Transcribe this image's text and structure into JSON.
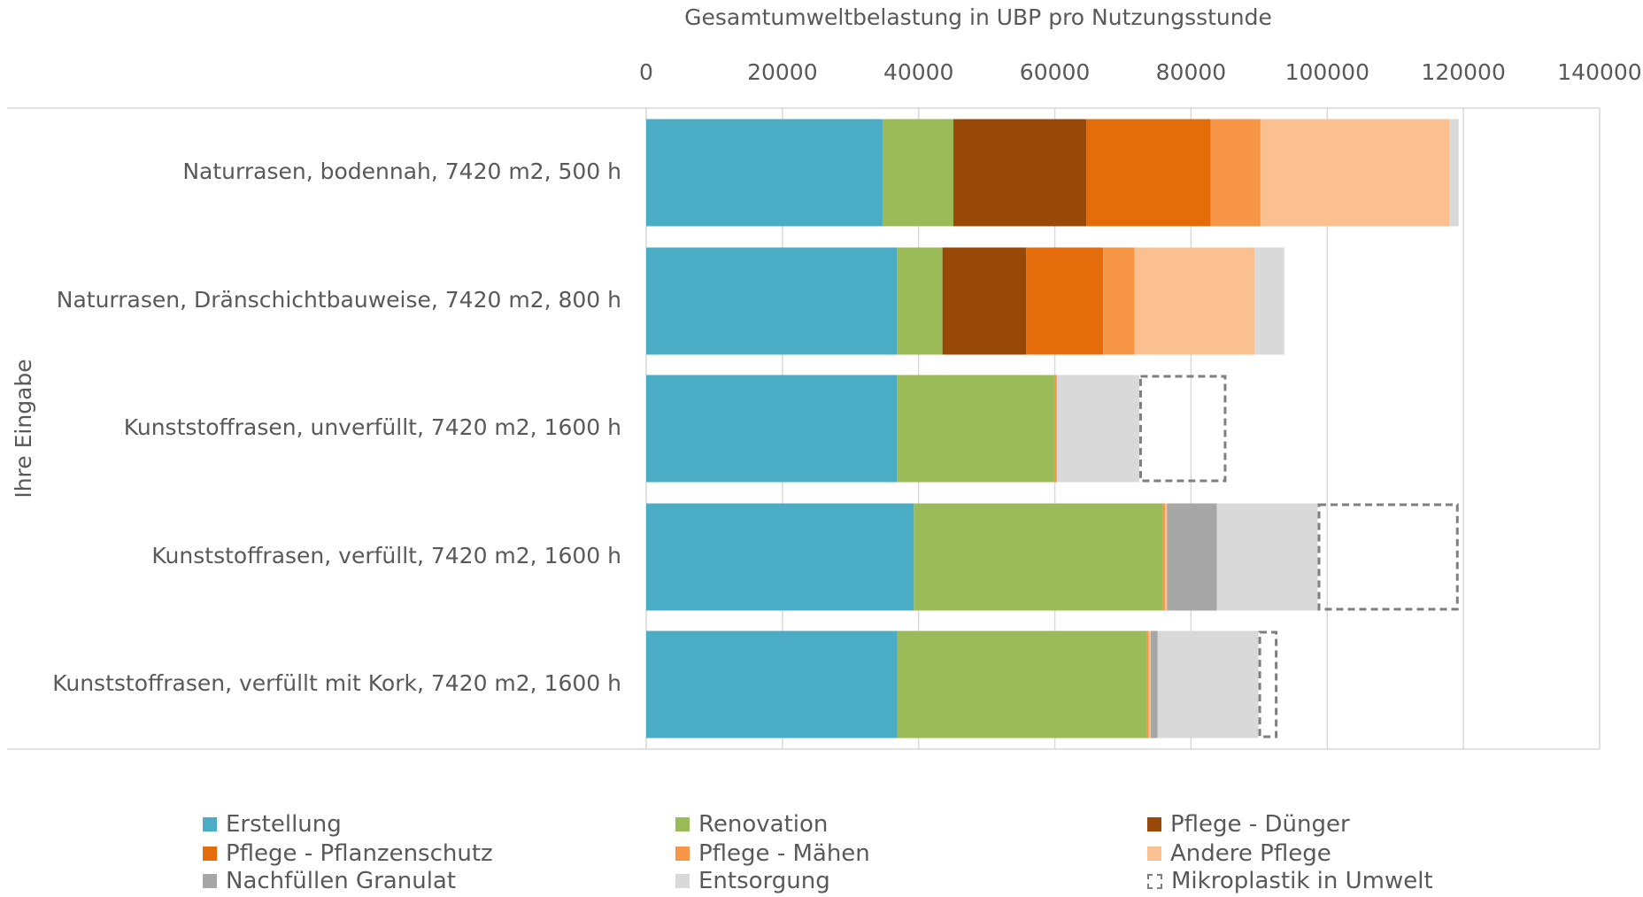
{
  "chart_data": {
    "type": "bar",
    "orientation": "horizontal",
    "stacked": true,
    "title": "Gesamtumweltbelastung in UBP pro Nutzungsstunde",
    "xlabel": "Gesamtumweltbelastung in UBP pro Nutzungsstunde",
    "ylabel": "Ihre Eingabe",
    "xlim": [
      0,
      140000
    ],
    "xticks": [
      0,
      20000,
      40000,
      60000,
      80000,
      100000,
      120000,
      140000
    ],
    "x_tick_labels": [
      "0",
      "20000",
      "40000",
      "60000",
      "80000",
      "100000",
      "120000",
      "140000"
    ],
    "x_axis_position": "top",
    "grid": true,
    "legend_position": "bottom",
    "categories": [
      "Naturrasen, bodennah, 7420 m2, 500 h",
      "Naturrasen, Dränschichtbauweise, 7420 m2, 800 h",
      "Kunststoffrasen, unverfüllt, 7420 m2, 1600 h",
      "Kunststoffrasen, verfüllt, 7420 m2, 1600 h",
      "Kunststoffrasen, verfüllt mit Kork, 7420 m2, 1600 h"
    ],
    "series": [
      {
        "name": "Erstellung",
        "color": "#4bacc6",
        "values": [
          34700,
          36800,
          36800,
          39300,
          36900
        ]
      },
      {
        "name": "Renovation",
        "color": "#9bbb59",
        "values": [
          10400,
          6700,
          23200,
          36600,
          36600
        ]
      },
      {
        "name": "Pflege - Dünger",
        "color": "#984807",
        "values": [
          19500,
          12300,
          0,
          0,
          0
        ]
      },
      {
        "name": "Pflege - Pflanzenschutz",
        "color": "#e46c0a",
        "values": [
          18300,
          11300,
          0,
          0,
          0
        ]
      },
      {
        "name": "Pflege - Mähen",
        "color": "#f79646",
        "values": [
          7300,
          4600,
          300,
          300,
          300
        ]
      },
      {
        "name": "Andere Pflege",
        "color": "#fac090",
        "values": [
          27800,
          17600,
          0,
          300,
          300
        ]
      },
      {
        "name": "Nachfüllen Granulat",
        "color": "#a6a6a6",
        "values": [
          0,
          0,
          0,
          7300,
          1000
        ]
      },
      {
        "name": "Entsorgung",
        "color": "#d9d9d9",
        "values": [
          1300,
          4400,
          12100,
          14800,
          14800
        ]
      },
      {
        "name": "Mikroplastik in Umwelt",
        "color": "#7f7f7f",
        "style": "dashed-outline",
        "values": [
          0,
          0,
          12800,
          20700,
          2800
        ]
      }
    ]
  },
  "legend": [
    {
      "label": "Erstellung",
      "color": "#4bacc6"
    },
    {
      "label": "Renovation",
      "color": "#9bbb59"
    },
    {
      "label": "Pflege - Dünger",
      "color": "#984807"
    },
    {
      "label": "Pflege - Pflanzenschutz",
      "color": "#e46c0a"
    },
    {
      "label": "Pflege - Mähen",
      "color": "#f79646"
    },
    {
      "label": "Andere Pflege",
      "color": "#fac090"
    },
    {
      "label": "Nachfüllen Granulat",
      "color": "#a6a6a6"
    },
    {
      "label": "Entsorgung",
      "color": "#d9d9d9"
    },
    {
      "label": "Mikroplastik in Umwelt",
      "color": "#7f7f7f",
      "dashed": true
    }
  ]
}
